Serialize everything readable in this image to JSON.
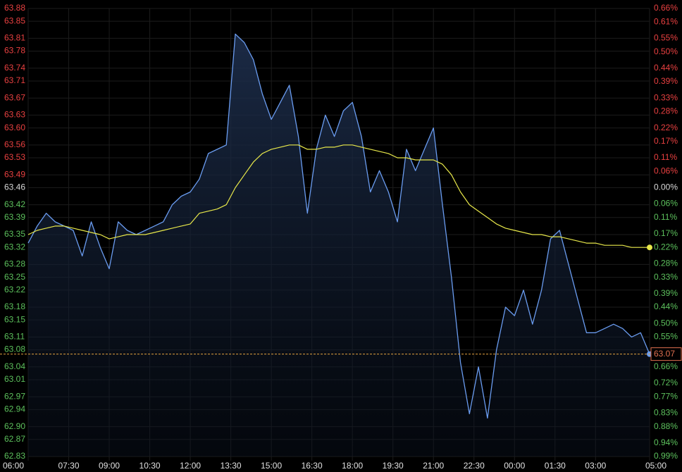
{
  "chart_data": {
    "type": "line",
    "x": [
      "06:00",
      "06:20",
      "06:40",
      "07:00",
      "07:20",
      "07:40",
      "08:00",
      "08:20",
      "08:40",
      "09:00",
      "09:20",
      "09:40",
      "10:00",
      "10:20",
      "10:40",
      "11:00",
      "11:20",
      "11:40",
      "12:00",
      "12:20",
      "12:40",
      "13:00",
      "13:20",
      "13:40",
      "14:00",
      "14:20",
      "14:40",
      "15:00",
      "15:20",
      "15:40",
      "16:00",
      "16:20",
      "16:40",
      "17:00",
      "17:20",
      "17:40",
      "18:00",
      "18:20",
      "18:40",
      "19:00",
      "19:20",
      "19:40",
      "20:00",
      "20:20",
      "20:40",
      "21:00",
      "21:20",
      "21:40",
      "22:00",
      "22:20",
      "22:40",
      "23:00",
      "23:20",
      "23:40",
      "00:00",
      "00:20",
      "00:40",
      "01:00",
      "01:20",
      "01:40",
      "02:00",
      "02:20",
      "02:40",
      "03:00",
      "03:20",
      "03:40",
      "04:00",
      "04:20",
      "04:40",
      "05:00"
    ],
    "series": [
      {
        "color": "#6a9cf0",
        "values": [
          63.33,
          63.37,
          63.4,
          63.38,
          63.37,
          63.36,
          63.3,
          63.38,
          63.32,
          63.27,
          63.38,
          63.36,
          63.35,
          63.36,
          63.37,
          63.38,
          63.42,
          63.44,
          63.45,
          63.48,
          63.54,
          63.55,
          63.56,
          63.82,
          63.8,
          63.76,
          63.68,
          63.62,
          63.66,
          63.7,
          63.58,
          63.4,
          63.55,
          63.63,
          63.58,
          63.64,
          63.66,
          63.58,
          63.45,
          63.5,
          63.45,
          63.38,
          63.55,
          63.5,
          63.55,
          63.6,
          63.42,
          63.25,
          63.05,
          62.93,
          63.04,
          62.92,
          63.08,
          63.18,
          63.16,
          63.22,
          63.14,
          63.22,
          63.34,
          63.36,
          63.28,
          63.2,
          63.12,
          63.12,
          63.13,
          63.14,
          63.13,
          63.11,
          63.12,
          63.07
        ]
      },
      {
        "color": "#e8e84a",
        "values": [
          63.35,
          63.36,
          63.365,
          63.37,
          63.37,
          63.365,
          63.36,
          63.355,
          63.35,
          63.34,
          63.345,
          63.35,
          63.35,
          63.35,
          63.355,
          63.36,
          63.365,
          63.37,
          63.375,
          63.4,
          63.405,
          63.41,
          63.42,
          63.46,
          63.49,
          63.52,
          63.54,
          63.55,
          63.555,
          63.56,
          63.56,
          63.55,
          63.55,
          63.555,
          63.555,
          63.56,
          63.56,
          63.555,
          63.55,
          63.545,
          63.54,
          63.53,
          63.53,
          63.525,
          63.525,
          63.525,
          63.515,
          63.49,
          63.45,
          63.42,
          63.405,
          63.39,
          63.375,
          63.365,
          63.36,
          63.355,
          63.35,
          63.35,
          63.345,
          63.345,
          63.34,
          63.335,
          63.33,
          63.33,
          63.325,
          63.325,
          63.325,
          63.32,
          63.32,
          63.32
        ]
      }
    ],
    "last_price": 63.07,
    "baseline": 63.46,
    "up_color": "#e84040",
    "down_color": "#5cc05c",
    "flat_color": "#d8d8d8",
    "ylim": [
      62.83,
      63.88
    ],
    "yticks": [
      63.88,
      63.85,
      63.81,
      63.78,
      63.74,
      63.71,
      63.67,
      63.63,
      {
        "value": 63.6,
        "label": "63.60"
      },
      63.56,
      63.53,
      63.49,
      63.46,
      63.42,
      63.39,
      63.35,
      63.32,
      63.28,
      63.25,
      63.22,
      63.18,
      63.15,
      63.11,
      63.08,
      63.04,
      63.01,
      62.97,
      62.94,
      {
        "value": 62.9,
        "label": "62.90"
      },
      62.87,
      62.83
    ],
    "y2lim": [
      -0.99,
      0.66
    ],
    "y2ticks": [
      {
        "value": 0.66,
        "label": "0.66%"
      },
      {
        "value": 0.61,
        "label": "0.61%"
      },
      {
        "value": 0.55,
        "label": "0.55%"
      },
      {
        "value": 0.5,
        "label": "0.50%"
      },
      {
        "value": 0.44,
        "label": "0.44%"
      },
      {
        "value": 0.39,
        "label": "0.39%"
      },
      {
        "value": 0.33,
        "label": "0.33%"
      },
      {
        "value": 0.28,
        "label": "0.28%"
      },
      {
        "value": 0.22,
        "label": "0.22%"
      },
      {
        "value": 0.17,
        "label": "0.17%"
      },
      {
        "value": 0.11,
        "label": "0.11%"
      },
      {
        "value": 0.06,
        "label": "0.06%"
      },
      {
        "value": 0,
        "label": "0.00%"
      },
      {
        "value": -0.06,
        "label": "0.06%"
      },
      {
        "value": -0.11,
        "label": "0.11%"
      },
      {
        "value": -0.17,
        "label": "0.17%"
      },
      {
        "value": -0.22,
        "label": "0.22%"
      },
      {
        "value": -0.28,
        "label": "0.28%"
      },
      {
        "value": -0.33,
        "label": "0.33%"
      },
      {
        "value": -0.39,
        "label": "0.39%"
      },
      {
        "value": -0.44,
        "label": "0.44%"
      },
      {
        "value": -0.5,
        "label": "0.50%"
      },
      {
        "value": -0.55,
        "label": "0.55%"
      },
      {
        "value": -0.61,
        "label": "0.61%"
      },
      {
        "value": -0.66,
        "label": "0.66%"
      },
      {
        "value": -0.72,
        "label": "0.72%"
      },
      {
        "value": -0.77,
        "label": "0.77%"
      },
      {
        "value": -0.83,
        "label": "0.83%"
      },
      {
        "value": -0.88,
        "label": "0.88%"
      },
      {
        "value": -0.94,
        "label": "0.94%"
      },
      {
        "value": -0.99,
        "label": "0.99%"
      }
    ],
    "xticks": [
      "06:00",
      "07:30",
      "09:00",
      "10:30",
      "12:00",
      "13:30",
      "15:00",
      "16:30",
      "18:00",
      "19:30",
      "21:00",
      "22:30",
      "00:00",
      "01:30",
      "03:00",
      "05:00"
    ],
    "grid": true
  }
}
